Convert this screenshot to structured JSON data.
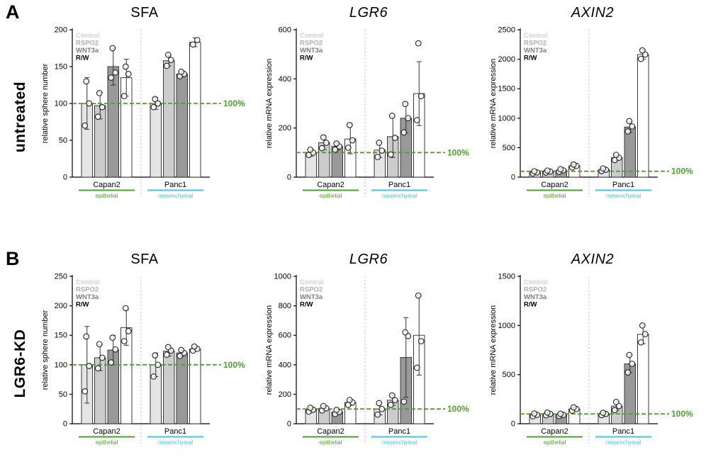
{
  "panels": [
    {
      "letter": "A",
      "side_label": "untreated",
      "chart_indexes": [
        0,
        1,
        2
      ]
    },
    {
      "letter": "B",
      "side_label": "LGR6-KD",
      "chart_indexes": [
        3,
        4,
        5
      ]
    }
  ],
  "legend": {
    "entries": [
      {
        "label": "Control",
        "fill": "#e5e5e5",
        "text_color": "#cfcfcf",
        "bold": true
      },
      {
        "label": "RSPO2",
        "fill": "#cccccc",
        "text_color": "#aeaeae",
        "bold": true
      },
      {
        "label": "WNT3a",
        "fill": "#999999",
        "text_color": "#7e7e7e",
        "bold": true
      },
      {
        "label": "R/W",
        "fill": "#ffffff",
        "text_color": "#000000",
        "bold": true
      }
    ]
  },
  "colors": {
    "green": "#4ea02c",
    "cyan": "#45c5dc",
    "axis": "#000000",
    "bar_stroke": "#3a3a3a",
    "separator": "#bbbbbb"
  },
  "chart_data": [
    {
      "type": "bar",
      "title": "SFA",
      "title_italic": false,
      "ylabel": "relative sphere number",
      "ylim": [
        0,
        200
      ],
      "yticks": [
        0,
        50,
        100,
        150,
        200
      ],
      "reference_line": {
        "value": 100,
        "label": "100%"
      },
      "categories": [
        "Capan2",
        "Panc1"
      ],
      "category_sublabels": [
        "epithelial",
        "mesenchymal"
      ],
      "series": [
        "Control",
        "RSPO2",
        "WNT3a",
        "R/W"
      ],
      "values": [
        [
          100,
          97,
          150,
          135
        ],
        [
          100,
          158,
          140,
          183
        ]
      ],
      "errors": [
        [
          35,
          18,
          25,
          25
        ],
        [
          8,
          7,
          4,
          6
        ]
      ],
      "points": [
        [
          [
            70,
            100,
            130
          ],
          [
            82,
            95,
            114
          ],
          [
            135,
            142,
            175
          ],
          [
            110,
            140,
            150
          ]
        ],
        [
          [
            95,
            100,
            106
          ],
          [
            151,
            159,
            166
          ],
          [
            137,
            140,
            143
          ],
          [
            180,
            186
          ]
        ]
      ]
    },
    {
      "type": "bar",
      "title": "LGR6",
      "title_italic": true,
      "ylabel": "relative mRNA expression",
      "ylim": [
        0,
        600
      ],
      "yticks": [
        0,
        200,
        400,
        600
      ],
      "reference_line": {
        "value": 100,
        "label": "100%"
      },
      "categories": [
        "Capan2",
        "Panc1"
      ],
      "category_sublabels": [
        "epithelial",
        "mesenchymal"
      ],
      "series": [
        "Control",
        "RSPO2",
        "WNT3a",
        "R/W"
      ],
      "values": [
        [
          100,
          140,
          125,
          155
        ],
        [
          110,
          165,
          240,
          340
        ]
      ],
      "errors": [
        [
          15,
          28,
          15,
          60
        ],
        [
          30,
          85,
          60,
          130
        ]
      ],
      "points": [
        [
          [
            90,
            100,
            112
          ],
          [
            118,
            140,
            162
          ],
          [
            112,
            125,
            137
          ],
          [
            120,
            150,
            212
          ]
        ],
        [
          [
            82,
            108,
            140
          ],
          [
            92,
            160,
            250
          ],
          [
            182,
            240,
            298
          ],
          [
            232,
            330,
            545
          ]
        ]
      ]
    },
    {
      "type": "bar",
      "title": "AXIN2",
      "title_italic": true,
      "ylabel": "relative mRNA expression",
      "ylim": [
        0,
        2500
      ],
      "yticks": [
        0,
        500,
        1000,
        1500,
        2000,
        2500
      ],
      "reference_line": {
        "value": 100,
        "label": "100%"
      },
      "categories": [
        "Capan2",
        "Panc1"
      ],
      "category_sublabels": [
        "epithelial",
        "mesenchymal"
      ],
      "series": [
        "Control",
        "RSPO2",
        "WNT3a",
        "R/W"
      ],
      "values": [
        [
          80,
          95,
          115,
          190
        ],
        [
          125,
          330,
          850,
          2080
        ]
      ],
      "errors": [
        [
          20,
          20,
          25,
          30
        ],
        [
          25,
          45,
          90,
          80
        ]
      ],
      "points": [
        [
          [
            62,
            80,
            100
          ],
          [
            78,
            95,
            112
          ],
          [
            92,
            115,
            135
          ],
          [
            165,
            190,
            215
          ]
        ],
        [
          [
            102,
            125,
            148
          ],
          [
            290,
            330,
            378
          ],
          [
            775,
            860,
            950
          ],
          [
            2005,
            2080,
            2150
          ]
        ]
      ]
    },
    {
      "type": "bar",
      "title": "SFA",
      "title_italic": false,
      "ylabel": "relative sphere number",
      "ylim": [
        0,
        250
      ],
      "yticks": [
        0,
        50,
        100,
        150,
        200,
        250
      ],
      "reference_line": {
        "value": 100,
        "label": "100%"
      },
      "categories": [
        "Capan2",
        "Panc1"
      ],
      "category_sublabels": [
        "epithelial",
        "mesenchymal"
      ],
      "series": [
        "Control",
        "RSPO2",
        "WNT3a",
        "R/W"
      ],
      "values": [
        [
          100,
          112,
          125,
          163
        ],
        [
          100,
          123,
          120,
          127
        ]
      ],
      "errors": [
        [
          65,
          22,
          25,
          30
        ],
        [
          20,
          8,
          5,
          4
        ]
      ],
      "points": [
        [
          [
            55,
            98,
            148
          ],
          [
            94,
            112,
            135
          ],
          [
            104,
            126,
            146
          ],
          [
            140,
            157,
            196
          ]
        ],
        [
          [
            80,
            100,
            116
          ],
          [
            117,
            124,
            130
          ],
          [
            115,
            120,
            125
          ],
          [
            124,
            127,
            131
          ]
        ]
      ]
    },
    {
      "type": "bar",
      "title": "LGR6",
      "title_italic": true,
      "ylabel": "relative mRNA expression",
      "ylim": [
        0,
        1000
      ],
      "yticks": [
        0,
        200,
        400,
        600,
        800,
        1000
      ],
      "reference_line": {
        "value": 100,
        "label": "100%"
      },
      "categories": [
        "Capan2",
        "Panc1"
      ],
      "category_sublabels": [
        "epithelial",
        "mesenchymal"
      ],
      "series": [
        "Control",
        "RSPO2",
        "WNT3a",
        "R/W"
      ],
      "values": [
        [
          95,
          105,
          80,
          145
        ],
        [
          100,
          160,
          450,
          600
        ]
      ],
      "errors": [
        [
          15,
          15,
          15,
          20
        ],
        [
          40,
          35,
          270,
          270
        ]
      ],
      "points": [
        [
          [
            82,
            95,
            108
          ],
          [
            90,
            105,
            120
          ],
          [
            66,
            80,
            94
          ],
          [
            128,
            145,
            162
          ]
        ],
        [
          [
            62,
            100,
            140
          ],
          [
            128,
            160,
            192
          ],
          [
            150,
            595,
            620
          ],
          [
            380,
            560,
            870
          ]
        ]
      ]
    },
    {
      "type": "bar",
      "title": "AXIN2",
      "title_italic": true,
      "ylabel": "relative mRNA expression",
      "ylim": [
        0,
        1500
      ],
      "yticks": [
        0,
        500,
        1000,
        1500
      ],
      "reference_line": {
        "value": 100,
        "label": "100%"
      },
      "categories": [
        "Capan2",
        "Panc1"
      ],
      "category_sublabels": [
        "epithelial",
        "mesenchymal"
      ],
      "series": [
        "Control",
        "RSPO2",
        "WNT3a",
        "R/W"
      ],
      "values": [
        [
          90,
          100,
          90,
          150
        ],
        [
          100,
          180,
          610,
          910
        ]
      ],
      "errors": [
        [
          15,
          15,
          12,
          18
        ],
        [
          15,
          45,
          90,
          95
        ]
      ],
      "points": [
        [
          [
            76,
            90,
            104
          ],
          [
            86,
            100,
            114
          ],
          [
            79,
            90,
            101
          ],
          [
            133,
            150,
            167
          ]
        ],
        [
          [
            88,
            100,
            112
          ],
          [
            138,
            180,
            222
          ],
          [
            522,
            610,
            700
          ],
          [
            828,
            912,
            1000
          ]
        ]
      ]
    }
  ]
}
